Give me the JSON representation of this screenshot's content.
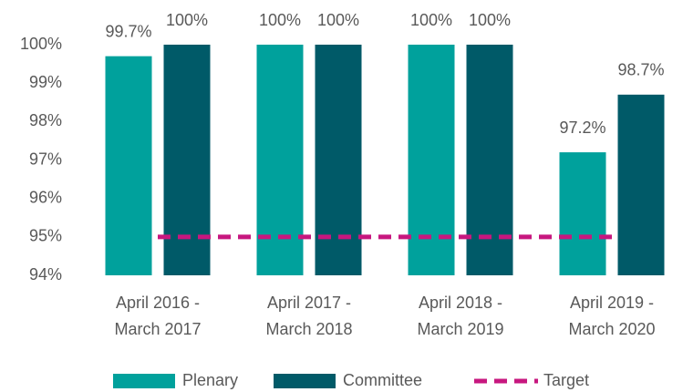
{
  "chart_data": {
    "type": "bar",
    "categories": [
      [
        "April 2016 -",
        "March 2017"
      ],
      [
        "April 2017 -",
        "March 2018"
      ],
      [
        "April 2018 -",
        "March 2019"
      ],
      [
        "April 2019 -",
        "March 2020"
      ]
    ],
    "series": [
      {
        "name": "Plenary",
        "color": "#00a19c",
        "values": [
          99.7,
          100,
          100,
          97.2
        ],
        "value_labels": [
          "99.7%",
          "100%",
          "100%",
          "97.2%"
        ]
      },
      {
        "name": "Committee",
        "color": "#005a68",
        "values": [
          100,
          100,
          100,
          98.7
        ],
        "value_labels": [
          "100%",
          "100%",
          "100%",
          "98.7%"
        ]
      },
      {
        "name": "Target",
        "type": "line",
        "dashed": true,
        "color": "#c7177f",
        "values": [
          95,
          95,
          95,
          95
        ]
      }
    ],
    "ylim": [
      94,
      100
    ],
    "yticks": [
      {
        "value": 94,
        "label": "94%"
      },
      {
        "value": 95,
        "label": "95%"
      },
      {
        "value": 96,
        "label": "96%"
      },
      {
        "value": 97,
        "label": "97%"
      },
      {
        "value": 98,
        "label": "98%"
      },
      {
        "value": 99,
        "label": "99%"
      },
      {
        "value": 100,
        "label": "100%"
      }
    ],
    "grid": false,
    "legend": "bottom"
  }
}
